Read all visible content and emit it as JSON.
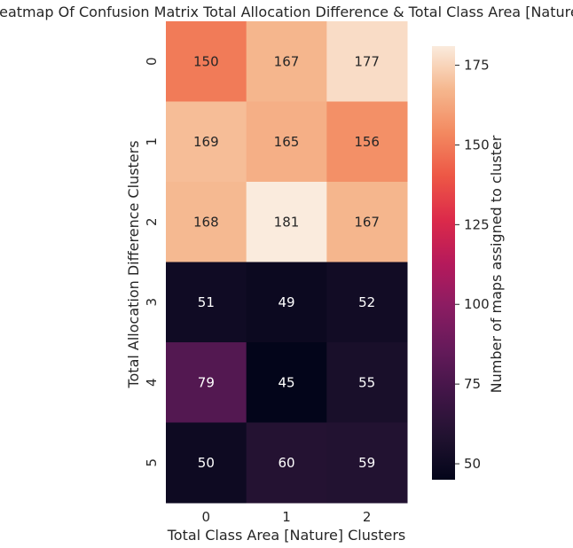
{
  "chart_data": {
    "type": "heatmap",
    "title": "Heatmap Of Confusion Matrix Total Allocation Difference & Total Class Area [Nature]",
    "xlabel": "Total Class Area [Nature] Clusters",
    "ylabel": "Total Allocation Difference Clusters",
    "x_categories": [
      "0",
      "1",
      "2"
    ],
    "y_categories": [
      "0",
      "1",
      "2",
      "3",
      "4",
      "5"
    ],
    "values": [
      [
        150,
        167,
        177
      ],
      [
        169,
        165,
        156
      ],
      [
        168,
        181,
        167
      ],
      [
        51,
        49,
        52
      ],
      [
        79,
        45,
        55
      ],
      [
        50,
        60,
        59
      ]
    ],
    "colorbar": {
      "label": "Number of maps assigned to cluster",
      "ticks": [
        "50",
        "75",
        "100",
        "125",
        "150",
        "175"
      ],
      "tick_values": [
        50,
        75,
        100,
        125,
        150,
        175
      ],
      "range": [
        45,
        181
      ],
      "colormap": "rocket"
    },
    "grid": false,
    "text_color_dark": "#262626",
    "text_color_light": "#ffffff"
  }
}
